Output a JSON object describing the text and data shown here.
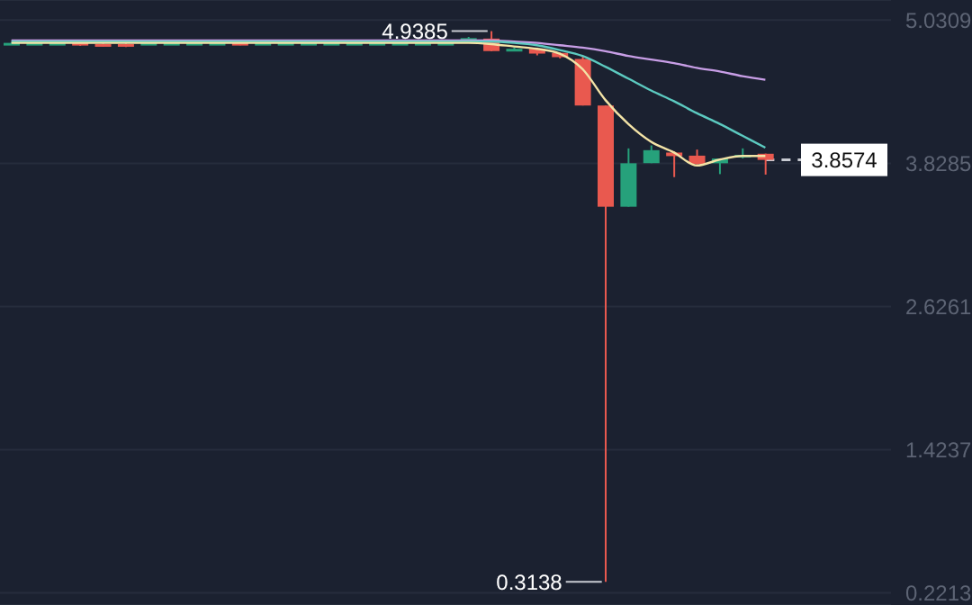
{
  "chart_data": {
    "type": "candlestick",
    "categories": [
      null,
      null,
      null,
      null,
      null,
      null,
      null,
      null,
      null,
      null,
      null,
      null,
      null,
      null,
      null,
      null,
      null,
      null,
      null,
      null,
      null,
      null,
      null,
      null,
      null,
      null,
      null,
      null,
      null,
      null,
      null,
      null,
      null,
      null
    ],
    "ohlc": [
      [
        4.835,
        4.845,
        4.83,
        4.84
      ],
      [
        4.835,
        4.845,
        4.83,
        4.84
      ],
      [
        4.835,
        4.845,
        4.83,
        4.84
      ],
      [
        4.84,
        4.845,
        4.815,
        4.82
      ],
      [
        4.83,
        4.835,
        4.81,
        4.815
      ],
      [
        4.83,
        4.835,
        4.805,
        4.81
      ],
      [
        4.835,
        4.845,
        4.83,
        4.84
      ],
      [
        4.835,
        4.845,
        4.83,
        4.84
      ],
      [
        4.835,
        4.845,
        4.83,
        4.84
      ],
      [
        4.835,
        4.845,
        4.83,
        4.84
      ],
      [
        4.84,
        4.845,
        4.82,
        4.825
      ],
      [
        4.835,
        4.845,
        4.83,
        4.84
      ],
      [
        4.835,
        4.845,
        4.83,
        4.84
      ],
      [
        4.835,
        4.845,
        4.83,
        4.84
      ],
      [
        4.835,
        4.845,
        4.83,
        4.84
      ],
      [
        4.835,
        4.845,
        4.83,
        4.84
      ],
      [
        4.835,
        4.845,
        4.83,
        4.84
      ],
      [
        4.835,
        4.845,
        4.83,
        4.84
      ],
      [
        4.835,
        4.845,
        4.83,
        4.84
      ],
      [
        4.835,
        4.845,
        4.83,
        4.84
      ],
      [
        4.85,
        4.89,
        4.85,
        4.88
      ],
      [
        4.876,
        4.9385,
        4.77,
        4.771
      ],
      [
        4.78,
        4.8,
        4.77,
        4.79
      ],
      [
        4.79,
        4.8,
        4.735,
        4.75
      ],
      [
        4.756,
        4.76,
        4.71,
        4.72
      ],
      [
        4.705,
        4.73,
        4.314,
        4.314
      ],
      [
        4.314,
        4.314,
        0.3138,
        3.464
      ],
      [
        3.464,
        3.954,
        3.464,
        3.829
      ],
      [
        3.83,
        3.979,
        3.83,
        3.939
      ],
      [
        3.919,
        3.93,
        3.713,
        3.889
      ],
      [
        3.893,
        3.944,
        3.814,
        3.824
      ],
      [
        3.829,
        3.87,
        3.738,
        3.869
      ],
      [
        3.88,
        3.954,
        3.87,
        3.9
      ],
      [
        3.909,
        3.91,
        3.734,
        3.8574
      ]
    ],
    "colors": [
      "#26a17b",
      "#26a17b",
      "#26a17b",
      "#e9594f",
      "#e9594f",
      "#e9594f",
      "#26a17b",
      "#26a17b",
      "#26a17b",
      "#26a17b",
      "#e9594f",
      "#26a17b",
      "#26a17b",
      "#26a17b",
      "#26a17b",
      "#26a17b",
      "#26a17b",
      "#26a17b",
      "#26a17b",
      "#26a17b",
      "#26a17b",
      "#e9594f",
      "#26a17b",
      "#e9594f",
      "#e9594f",
      "#e9594f",
      "#e9594f",
      "#26a17b",
      "#26a17b",
      "#e9594f",
      "#e9594f",
      "#26a17b",
      "#26a17b",
      "#e9594f"
    ],
    "series": [
      {
        "type": "line",
        "color": "#c89ee6",
        "values": [
          4.86,
          4.86,
          4.86,
          4.86,
          4.86,
          4.86,
          4.86,
          4.86,
          4.86,
          4.86,
          4.86,
          4.86,
          4.86,
          4.86,
          4.86,
          4.86,
          4.86,
          4.86,
          4.86,
          4.86,
          4.86,
          4.86,
          4.85,
          4.84,
          4.82,
          4.8,
          4.77,
          4.73,
          4.7,
          4.67,
          4.63,
          4.6,
          4.56,
          4.53
        ]
      },
      {
        "type": "line",
        "color": "#5ccac0",
        "values": [
          4.85,
          4.85,
          4.85,
          4.85,
          4.85,
          4.85,
          4.85,
          4.85,
          4.85,
          4.85,
          4.85,
          4.85,
          4.85,
          4.85,
          4.85,
          4.85,
          4.85,
          4.85,
          4.85,
          4.85,
          4.85,
          4.85,
          4.84,
          4.82,
          4.78,
          4.73,
          4.64,
          4.54,
          4.44,
          4.35,
          4.25,
          4.16,
          4.06,
          3.96
        ]
      },
      {
        "type": "line",
        "color": "#f3e3a6",
        "values": [
          4.84,
          4.84,
          4.84,
          4.84,
          4.84,
          4.84,
          4.84,
          4.84,
          4.84,
          4.84,
          4.84,
          4.84,
          4.84,
          4.84,
          4.84,
          4.84,
          4.84,
          4.84,
          4.84,
          4.84,
          4.84,
          4.83,
          4.81,
          4.79,
          4.75,
          4.62,
          4.36,
          4.16,
          4.01,
          3.92,
          3.81,
          3.86,
          3.89,
          3.89
        ]
      }
    ],
    "ylim": [
      0.12,
      5.2
    ],
    "yticks": [
      5.0309,
      3.8285,
      2.6261,
      1.4237,
      0.2213
    ],
    "grid": "y",
    "ref_lines": [
      {
        "axis": "y",
        "value": 3.8574,
        "label": "3.8574",
        "color": "#c8cbd2",
        "line_style": "dashed"
      }
    ],
    "annotations": [
      "4.9385",
      "0.3138"
    ]
  }
}
